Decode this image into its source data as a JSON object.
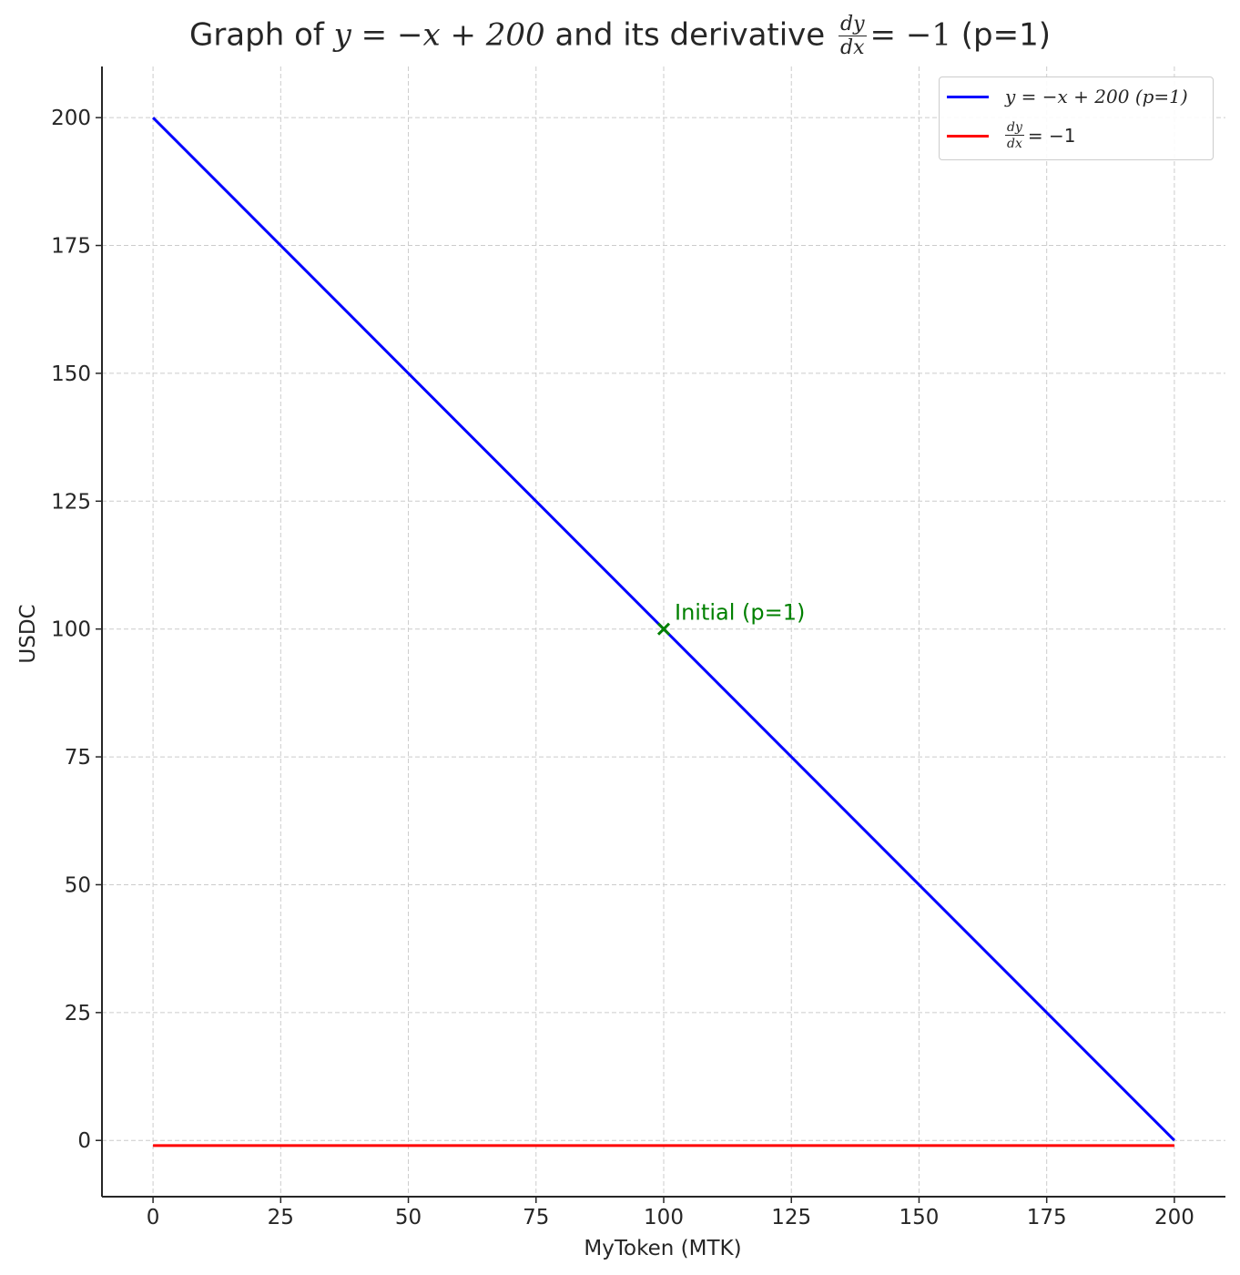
{
  "chart_data": {
    "type": "line",
    "title": {
      "prefix": "Graph of ",
      "eq1": "y = −x + 200",
      "middle": " and its derivative ",
      "frac_num": "dy",
      "frac_den": "dx",
      "eq2": "= −1",
      "suffix": " (p=1)"
    },
    "xlabel": "MyToken (MTK)",
    "ylabel": "USDC",
    "xlim": [
      -10,
      210
    ],
    "ylim": [
      -11,
      210
    ],
    "xticks": [
      0,
      25,
      50,
      75,
      100,
      125,
      150,
      175,
      200
    ],
    "yticks": [
      0,
      25,
      50,
      75,
      100,
      125,
      150,
      175,
      200
    ],
    "grid": true,
    "legend_position": "top-right",
    "series": [
      {
        "name": "y = −x + 200 (p=1)",
        "color": "#0000ff",
        "x": [
          0,
          200
        ],
        "y": [
          200,
          0
        ]
      },
      {
        "name_frac_num": "dy",
        "name_frac_den": "dx",
        "name": "= −1",
        "color": "#ff0000",
        "x": [
          0,
          200
        ],
        "y": [
          -1,
          -1
        ]
      }
    ],
    "annotations": [
      {
        "label": "Initial (p=1)",
        "x": 100,
        "y": 100,
        "marker": "x",
        "color": "#008000"
      }
    ]
  }
}
